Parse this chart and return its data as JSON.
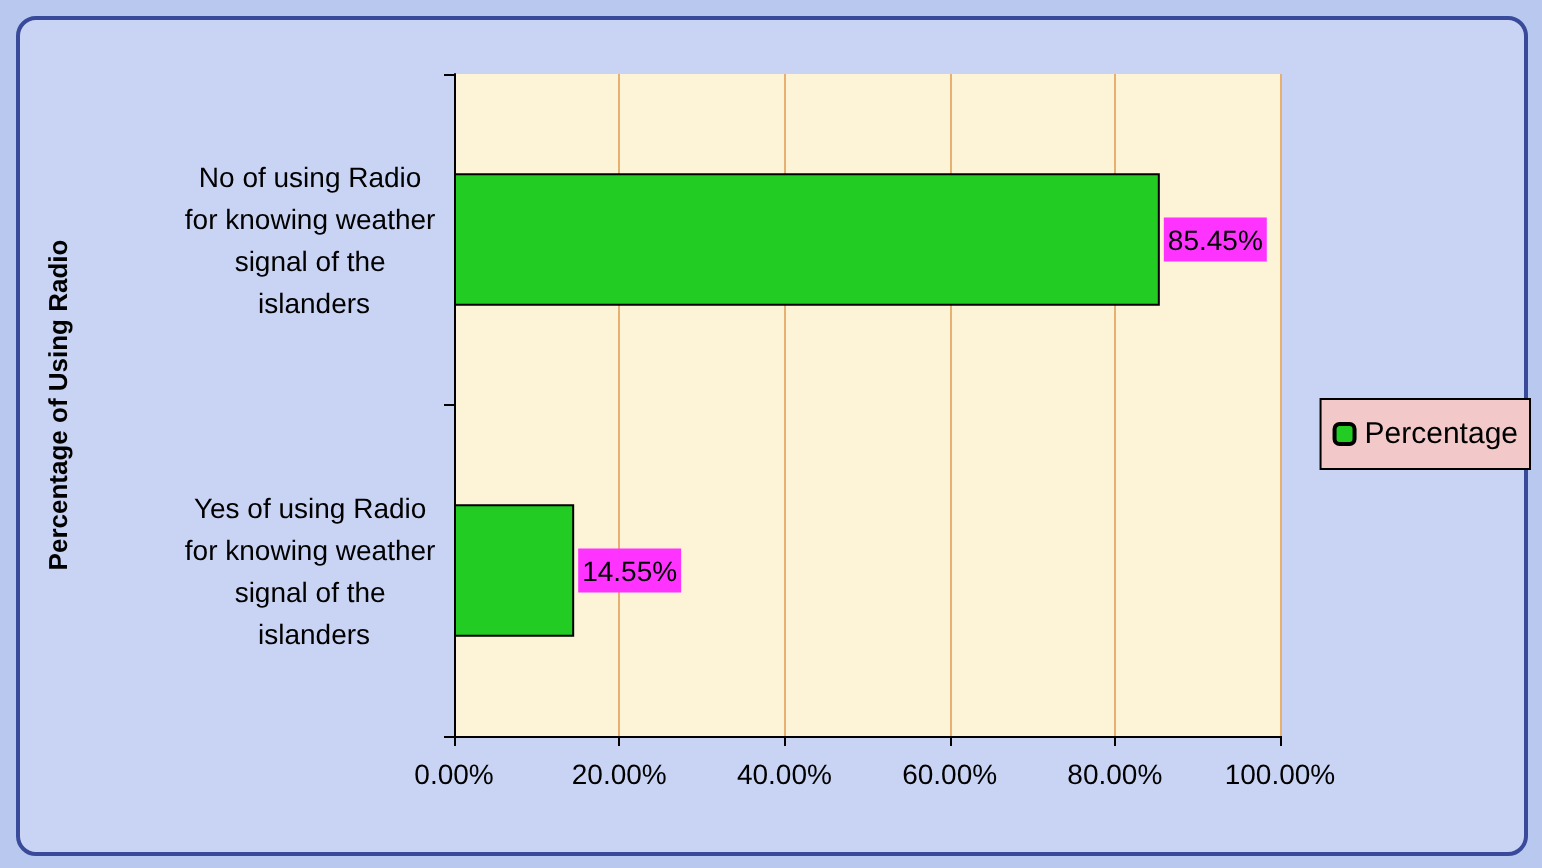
{
  "chart_data": {
    "type": "bar",
    "orientation": "horizontal",
    "ylabel": "Percentage of Using Radio",
    "categories": [
      "No of using Radio for knowing weather signal of the islanders",
      "Yes of using Radio for knowing weather signal of the islanders"
    ],
    "series": [
      {
        "name": "Percentage",
        "color": "#22cc22",
        "values": [
          85.45,
          14.55
        ],
        "value_labels": [
          "85.45%",
          "14.55%"
        ]
      }
    ],
    "xlim": [
      0,
      100
    ],
    "xticks": [
      {
        "value": 0,
        "label": "0.00%"
      },
      {
        "value": 20,
        "label": "20.00%"
      },
      {
        "value": 40,
        "label": "40.00%"
      },
      {
        "value": 60,
        "label": "60.00%"
      },
      {
        "value": 80,
        "label": "80.00%"
      },
      {
        "value": 100,
        "label": "100.00%"
      }
    ],
    "grid": "x",
    "legend": "right"
  }
}
